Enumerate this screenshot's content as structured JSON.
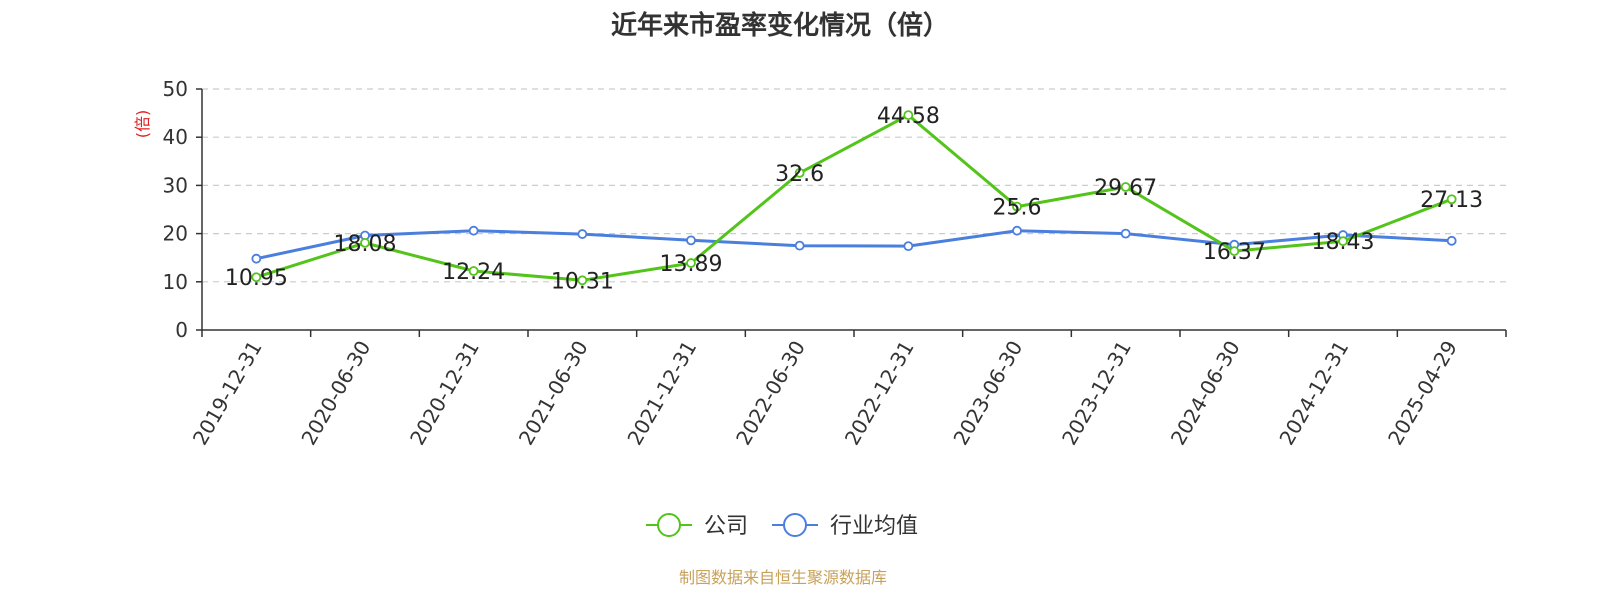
{
  "chart_data": {
    "type": "line",
    "title": "近年来市盈率变化情况（倍）",
    "ylabel": "(倍)",
    "xlabel": "",
    "ylim": [
      0,
      50
    ],
    "yticks": [
      0,
      10,
      20,
      30,
      40,
      50
    ],
    "grid": true,
    "legend_position": "bottom-center",
    "categories": [
      "2019-12-31",
      "2020-06-30",
      "2020-12-31",
      "2021-06-30",
      "2021-12-31",
      "2022-06-30",
      "2022-12-31",
      "2023-06-30",
      "2023-12-31",
      "2024-06-30",
      "2024-12-31",
      "2025-04-29"
    ],
    "series": [
      {
        "name": "公司",
        "color": "#52c41a",
        "labels": true,
        "values": [
          10.95,
          18.08,
          12.24,
          10.31,
          13.89,
          32.6,
          44.58,
          25.6,
          29.67,
          16.37,
          18.43,
          27.13
        ]
      },
      {
        "name": "行业均值",
        "color": "#4a7fde",
        "labels": false,
        "values": [
          14.8,
          19.6,
          20.6,
          19.9,
          18.6,
          17.5,
          17.4,
          20.6,
          20.0,
          17.7,
          19.7,
          18.5
        ]
      }
    ]
  },
  "footer": {
    "source": "制图数据来自恒生聚源数据库"
  }
}
